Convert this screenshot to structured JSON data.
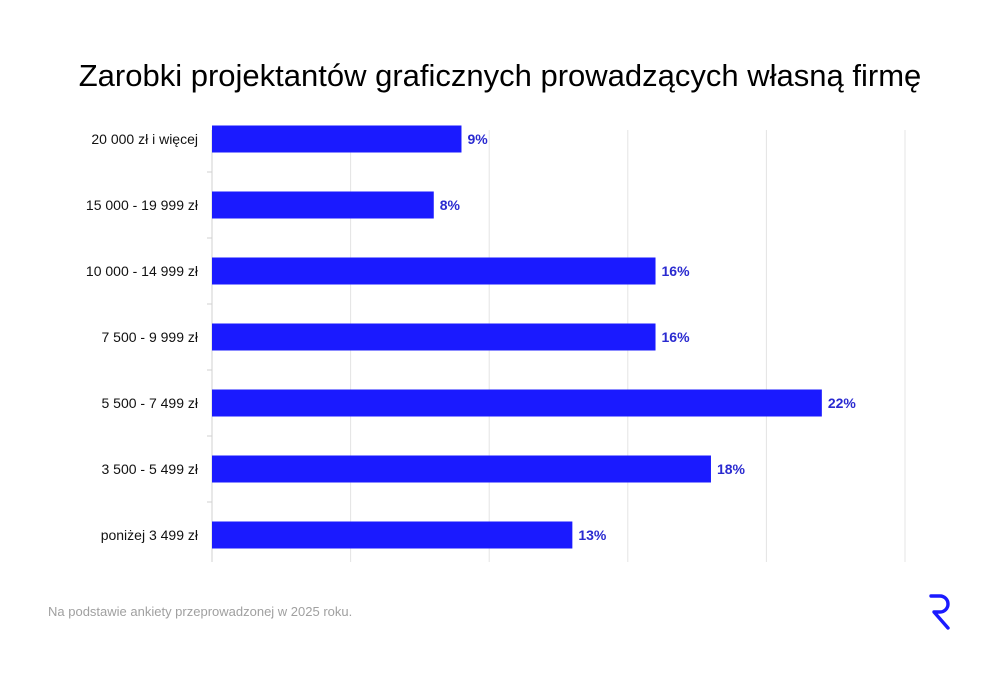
{
  "chart_data": {
    "type": "bar",
    "orientation": "horizontal",
    "title": "Zarobki projektantów graficznych prowadzących własną firmę",
    "categories": [
      "20 000 zł i więcej",
      "15 000 - 19 999 zł",
      "10 000 - 14 999 zł",
      "7 500 - 9 999 zł",
      "5 500 - 7 499 zł",
      "3 500 - 5 499 zł",
      "poniżej 3 499 zł"
    ],
    "values": [
      9,
      8,
      16,
      16,
      22,
      18,
      13
    ],
    "value_labels": [
      "9%",
      "8%",
      "16%",
      "16%",
      "22%",
      "18%",
      "13%"
    ],
    "xlim": [
      0,
      25
    ],
    "grid": true,
    "bar_color": "#1a1aff",
    "label_color": "#2a2ad0"
  },
  "footnote": "Na podstawie ankiety przeprowadzonej w 2025 roku.",
  "logo_icon": "r-brand-logo-icon"
}
